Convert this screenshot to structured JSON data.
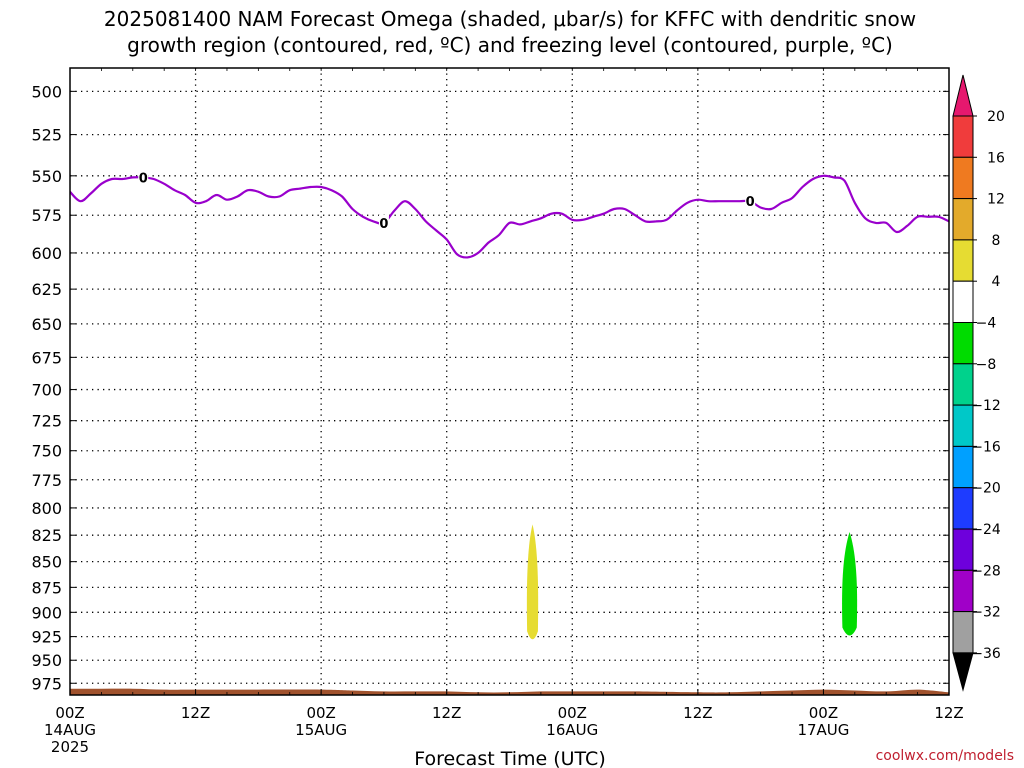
{
  "title_line1": "2025081400 NAM Forecast Omega (shaded, μbar/s) for KFFC with dendritic snow",
  "title_line2": "growth region (contoured, red, ºC) and freezing level (contoured, purple, ºC)",
  "credit": "coolwx.com/models",
  "chart_data": {
    "type": "heatmap",
    "title": "2025081400 NAM Forecast Omega (shaded, μbar/s) for KFFC with dendritic snow growth region (contoured, red, ºC) and freezing level (contoured, purple, ºC)",
    "xlabel": "Forecast Time (UTC)",
    "ylabel": "",
    "xlim_hours": [
      0,
      84
    ],
    "ylim_hpa": [
      487,
      988
    ],
    "y_reversed": true,
    "grid": true,
    "y_ticks": [
      500,
      525,
      550,
      575,
      600,
      625,
      650,
      675,
      700,
      725,
      750,
      775,
      800,
      825,
      850,
      875,
      900,
      925,
      950,
      975
    ],
    "x_ticks": [
      {
        "hour": 0,
        "label": "00Z",
        "date": "14AUG",
        "year": "2025"
      },
      {
        "hour": 12,
        "label": "12Z",
        "date": "",
        "year": ""
      },
      {
        "hour": 24,
        "label": "00Z",
        "date": "15AUG",
        "year": ""
      },
      {
        "hour": 36,
        "label": "12Z",
        "date": "",
        "year": ""
      },
      {
        "hour": 48,
        "label": "00Z",
        "date": "16AUG",
        "year": ""
      },
      {
        "hour": 60,
        "label": "12Z",
        "date": "",
        "year": ""
      },
      {
        "hour": 72,
        "label": "00Z",
        "date": "17AUG",
        "year": ""
      },
      {
        "hour": 84,
        "label": "12Z",
        "date": "",
        "year": ""
      }
    ],
    "freezing_level": {
      "color": "#9900cc",
      "contour_label": "0",
      "label_hours": [
        7,
        30,
        65
      ],
      "hours": [
        0,
        1,
        2,
        3,
        4,
        5,
        6,
        7,
        8,
        9,
        10,
        11,
        12,
        13,
        14,
        15,
        16,
        17,
        18,
        19,
        20,
        21,
        22,
        23,
        24,
        25,
        26,
        27,
        28,
        29,
        30,
        31,
        32,
        33,
        34,
        35,
        36,
        37,
        38,
        39,
        40,
        41,
        42,
        43,
        44,
        45,
        46,
        47,
        48,
        49,
        50,
        51,
        52,
        53,
        54,
        55,
        56,
        57,
        58,
        59,
        60,
        61,
        62,
        63,
        64,
        65,
        66,
        67,
        68,
        69,
        70,
        71,
        72,
        73,
        74,
        75,
        76,
        77,
        78,
        79,
        80,
        81,
        82,
        83,
        84
      ],
      "pressure": [
        560,
        566,
        561,
        555,
        552,
        552,
        551,
        551,
        552,
        555,
        559,
        562,
        567,
        566,
        562,
        565,
        563,
        559,
        560,
        563,
        563,
        559,
        558,
        557,
        557,
        559,
        563,
        571,
        576,
        579,
        580,
        572,
        566,
        571,
        579,
        585,
        591,
        601,
        603,
        600,
        593,
        588,
        580,
        581,
        579,
        577,
        574,
        574,
        578,
        578,
        576,
        574,
        571,
        571,
        575,
        579,
        579,
        578,
        572,
        567,
        565,
        566,
        566,
        566,
        566,
        566,
        570,
        571,
        567,
        564,
        557,
        552,
        550,
        551,
        553,
        567,
        577,
        580,
        580,
        586,
        582,
        576,
        576,
        576,
        579
      ]
    },
    "omega_features": [
      {
        "name": "yellow ascent",
        "value_range": [
          4,
          8
        ],
        "color": "#e6dc32",
        "center_hour": 44.2,
        "top_hpa": 815,
        "bottom_hpa": 932
      },
      {
        "name": "green ascent",
        "value_range": [
          -8,
          -4
        ],
        "color": "#00dc00",
        "center_hour": 74.5,
        "top_hpa": 822,
        "bottom_hpa": 928
      }
    ],
    "terrain": {
      "color": "#a0522d",
      "hours": [
        0,
        3,
        6,
        9,
        12,
        18,
        24,
        27,
        30,
        33,
        36,
        39,
        42,
        45,
        48,
        54,
        60,
        63,
        66,
        69,
        72,
        75,
        78,
        81,
        84
      ],
      "pressure": [
        981,
        981,
        981,
        982,
        982,
        982,
        982,
        983,
        984,
        984,
        984,
        985,
        985,
        984,
        984,
        984,
        985,
        985,
        984,
        983,
        982,
        983,
        984,
        982,
        985
      ]
    },
    "colorbar": {
      "labels": [
        "20",
        "16",
        "12",
        "8",
        "4",
        "-4",
        "-8",
        "-12",
        "-16",
        "-20",
        "-24",
        "-28",
        "-32",
        "-36"
      ],
      "levels": [
        20,
        16,
        12,
        8,
        4,
        -4,
        -8,
        -12,
        -16,
        -20,
        -24,
        -28,
        -32,
        -36
      ],
      "top_arrow_color": "#e6186e",
      "bottom_arrow_color": "#000000",
      "bands": [
        {
          "from": 20,
          "to": 16,
          "color": "#f03c3c"
        },
        {
          "from": 16,
          "to": 12,
          "color": "#ef7a20"
        },
        {
          "from": 12,
          "to": 8,
          "color": "#e3aa2b"
        },
        {
          "from": 8,
          "to": 4,
          "color": "#e6dc32"
        },
        {
          "from": 4,
          "to": -4,
          "color": "#ffffff"
        },
        {
          "from": -4,
          "to": -8,
          "color": "#00dc00"
        },
        {
          "from": -8,
          "to": -12,
          "color": "#00d28c"
        },
        {
          "from": -12,
          "to": -16,
          "color": "#00c8c8"
        },
        {
          "from": -16,
          "to": -20,
          "color": "#00a0ff"
        },
        {
          "from": -20,
          "to": -24,
          "color": "#1e3cff"
        },
        {
          "from": -24,
          "to": -28,
          "color": "#6e00dc"
        },
        {
          "from": -28,
          "to": -32,
          "color": "#a000c8"
        },
        {
          "from": -32,
          "to": -36,
          "color": "#a0a0a0"
        }
      ]
    }
  }
}
